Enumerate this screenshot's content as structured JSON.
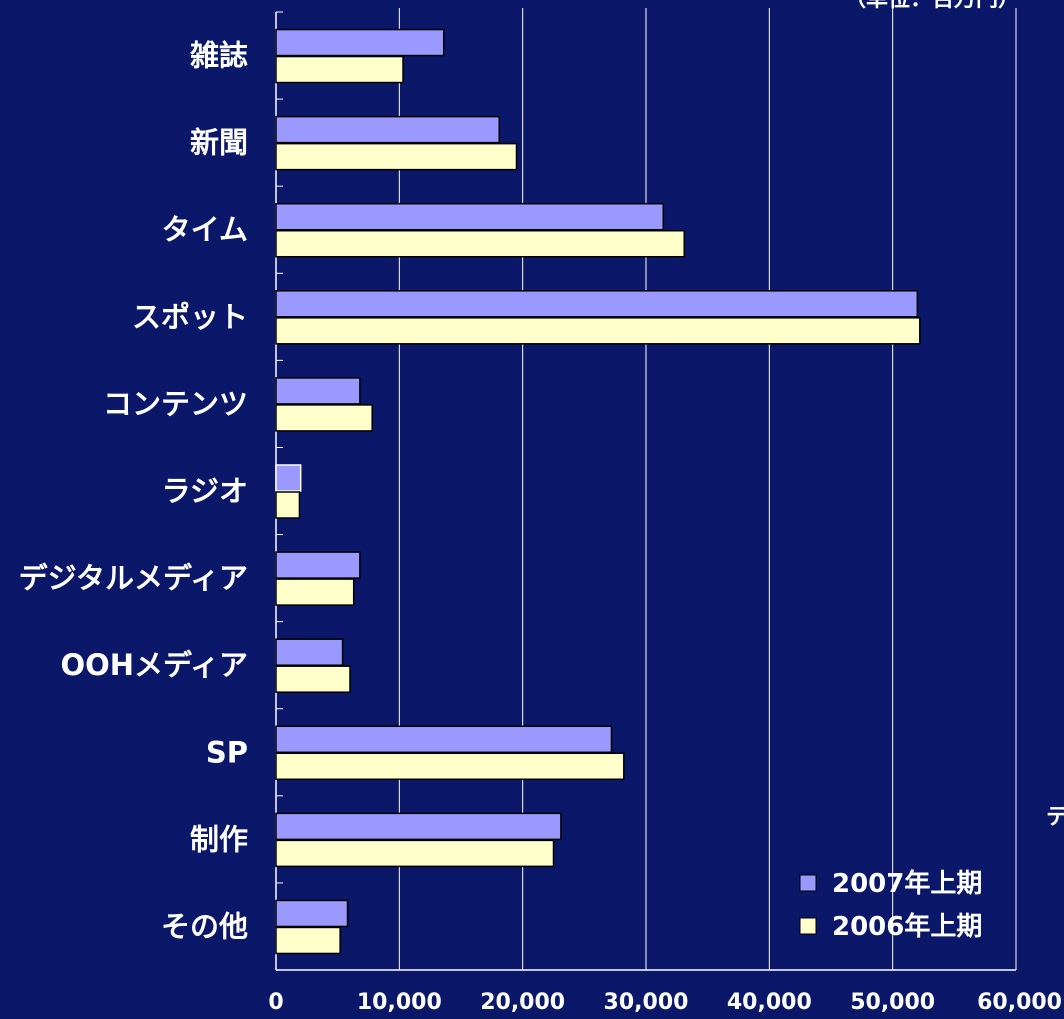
{
  "chart_data": {
    "type": "bar",
    "orientation": "horizontal",
    "categories": [
      "雑誌",
      "新聞",
      "タイム",
      "スポット",
      "コンテンツ",
      "ラジオ",
      "デジタルメディア",
      "OOHメディア",
      "SP",
      "制作",
      "その他"
    ],
    "series": [
      {
        "name": "2007年上期",
        "color": "#9999FF",
        "values": [
          13600,
          18100,
          31400,
          52000,
          6800,
          2000,
          6800,
          5400,
          27200,
          23100,
          5800
        ]
      },
      {
        "name": "2006年上期",
        "color": "#FFFFCC",
        "values": [
          10300,
          19500,
          33100,
          52200,
          7800,
          1900,
          6300,
          6000,
          28200,
          22500,
          5200
        ]
      }
    ],
    "xlim": [
      0,
      60000
    ],
    "x_ticks": [
      "0",
      "10,000",
      "20,000",
      "30,000",
      "40,000",
      "50,000",
      "60,000"
    ],
    "grid": true,
    "legend_position": "bottom-right",
    "xlabel": "",
    "ylabel": ""
  },
  "cut_text": {
    "top_right": "（単位：百万円）",
    "right_edge": "テ"
  },
  "colors": {
    "background": "#0B1768",
    "grid": "#FFFFFF",
    "bar_outline": "#000000"
  }
}
